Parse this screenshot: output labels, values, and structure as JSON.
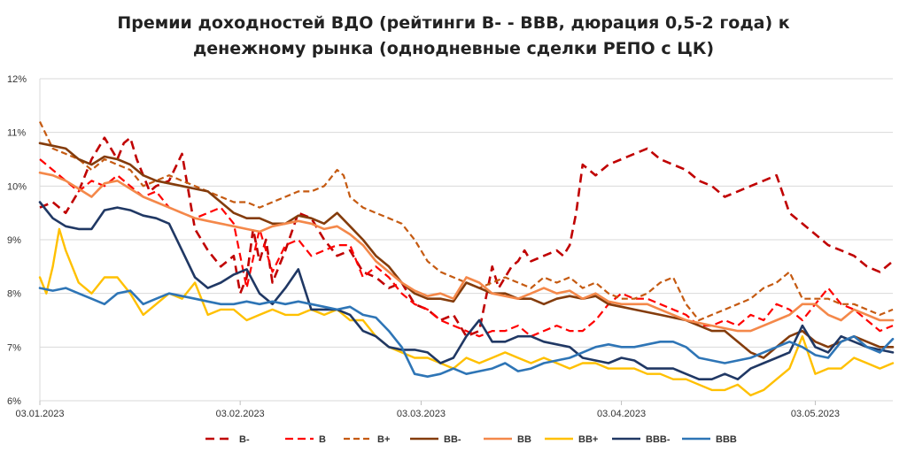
{
  "chart_data": {
    "type": "line",
    "title_line1": "Премии доходностей ВДО (рейтинги В- - ВВВ, дюрация 0,5-2 года) к",
    "title_line2": "денежному рынка (однодневные сделки РЕПО с ЦК)",
    "xlabel": "",
    "ylabel": "",
    "ylim": [
      6,
      12
    ],
    "xlim": [
      0,
      132
    ],
    "grid": true,
    "legend_position": "bottom",
    "y_ticks": [
      {
        "value": 6,
        "label": "6%"
      },
      {
        "value": 7,
        "label": "7%"
      },
      {
        "value": 8,
        "label": "8%"
      },
      {
        "value": 9,
        "label": "9%"
      },
      {
        "value": 10,
        "label": "10%"
      },
      {
        "value": 11,
        "label": "11%"
      },
      {
        "value": 12,
        "label": "12%"
      }
    ],
    "x_ticks": [
      {
        "day": 0,
        "label": "03.01.2023"
      },
      {
        "day": 31,
        "label": "03.02.2023"
      },
      {
        "day": 59,
        "label": "03.03.2023"
      },
      {
        "day": 90,
        "label": "03.04.2023"
      },
      {
        "day": 120,
        "label": "03.05.2023"
      }
    ],
    "series": [
      {
        "name": "В-",
        "color": "#c00000",
        "dash": "10,6",
        "width": 2.6,
        "x": [
          0,
          2,
          4,
          6,
          8,
          10,
          12,
          13,
          14,
          15,
          16,
          17,
          18,
          20,
          22,
          24,
          26,
          28,
          30,
          31,
          32,
          33,
          34,
          35,
          36,
          38,
          40,
          42,
          44,
          46,
          48,
          50,
          52,
          54,
          56,
          58,
          60,
          62,
          64,
          66,
          68,
          70,
          71,
          72,
          73,
          74,
          75,
          76,
          78,
          80,
          81,
          82,
          83,
          84,
          85,
          86,
          88,
          90,
          92,
          94,
          96,
          98,
          100,
          102,
          104,
          106,
          108,
          110,
          112,
          114,
          116,
          118,
          120,
          122,
          124,
          126,
          128,
          130,
          132
        ],
        "y": [
          9.6,
          9.7,
          9.5,
          9.9,
          10.5,
          10.9,
          10.5,
          10.8,
          10.9,
          10.5,
          10.2,
          9.9,
          10.0,
          10.1,
          10.6,
          9.2,
          8.8,
          8.5,
          8.7,
          8.0,
          8.3,
          9.2,
          8.6,
          9.0,
          8.2,
          8.8,
          9.5,
          9.4,
          9.0,
          8.7,
          8.8,
          8.4,
          8.3,
          8.1,
          8.2,
          7.8,
          7.7,
          7.5,
          7.6,
          7.2,
          7.3,
          8.5,
          8.1,
          8.3,
          8.5,
          8.6,
          8.8,
          8.6,
          8.7,
          8.8,
          8.7,
          8.9,
          9.5,
          10.4,
          10.3,
          10.2,
          10.4,
          10.5,
          10.6,
          10.7,
          10.5,
          10.4,
          10.3,
          10.1,
          10.0,
          9.8,
          9.9,
          10.0,
          10.1,
          10.2,
          9.5,
          9.3,
          9.1,
          8.9,
          8.8,
          8.7,
          8.5,
          8.4,
          8.6
        ]
      },
      {
        "name": "В",
        "color": "#ff0000",
        "dash": "9,5",
        "width": 2.2,
        "x": [
          0,
          2,
          4,
          6,
          8,
          10,
          12,
          14,
          16,
          18,
          20,
          22,
          24,
          26,
          28,
          30,
          32,
          34,
          36,
          38,
          40,
          42,
          44,
          46,
          48,
          50,
          52,
          54,
          56,
          58,
          60,
          62,
          64,
          66,
          68,
          70,
          72,
          74,
          76,
          78,
          80,
          82,
          84,
          86,
          88,
          90,
          92,
          94,
          96,
          98,
          100,
          102,
          104,
          106,
          108,
          110,
          112,
          114,
          116,
          118,
          120,
          122,
          124,
          126,
          128,
          130,
          132
        ],
        "y": [
          10.5,
          10.3,
          10.1,
          9.9,
          10.1,
          10.0,
          10.2,
          10.0,
          9.8,
          9.9,
          9.6,
          9.5,
          9.4,
          9.5,
          9.6,
          9.3,
          8.1,
          9.2,
          8.4,
          8.9,
          9.0,
          8.7,
          8.8,
          8.9,
          8.9,
          8.3,
          8.5,
          8.3,
          8.0,
          7.8,
          7.7,
          7.5,
          7.4,
          7.3,
          7.2,
          7.3,
          7.3,
          7.4,
          7.2,
          7.3,
          7.4,
          7.3,
          7.3,
          7.5,
          7.8,
          8.0,
          7.9,
          7.9,
          7.8,
          7.7,
          7.6,
          7.4,
          7.4,
          7.5,
          7.4,
          7.6,
          7.5,
          7.8,
          7.7,
          7.5,
          7.8,
          8.1,
          7.8,
          7.7,
          7.5,
          7.3,
          7.4
        ]
      },
      {
        "name": "В+",
        "color": "#c55a11",
        "dash": "7,4",
        "width": 2.2,
        "x": [
          0,
          2,
          4,
          6,
          8,
          10,
          12,
          14,
          16,
          18,
          20,
          22,
          24,
          26,
          28,
          30,
          32,
          34,
          36,
          38,
          40,
          42,
          44,
          46,
          47,
          48,
          50,
          52,
          54,
          56,
          58,
          60,
          62,
          64,
          66,
          68,
          70,
          72,
          74,
          76,
          78,
          80,
          82,
          84,
          86,
          88,
          90,
          92,
          94,
          96,
          98,
          100,
          102,
          104,
          106,
          108,
          110,
          112,
          114,
          116,
          118,
          120,
          122,
          124,
          126,
          128,
          130,
          132
        ],
        "y": [
          11.2,
          10.7,
          10.6,
          10.5,
          10.3,
          10.5,
          10.4,
          10.3,
          10.0,
          10.1,
          10.2,
          10.1,
          10.0,
          9.9,
          9.8,
          9.7,
          9.7,
          9.6,
          9.7,
          9.8,
          9.9,
          9.9,
          10.0,
          10.3,
          10.2,
          9.8,
          9.6,
          9.5,
          9.4,
          9.3,
          9.0,
          8.6,
          8.4,
          8.3,
          8.2,
          8.1,
          8.2,
          8.3,
          8.2,
          8.1,
          8.3,
          8.2,
          8.3,
          8.1,
          8.2,
          8.0,
          7.9,
          7.9,
          8.0,
          8.2,
          8.3,
          7.8,
          7.5,
          7.6,
          7.7,
          7.8,
          7.9,
          8.1,
          8.2,
          8.4,
          7.9,
          7.9,
          7.9,
          7.8,
          7.8,
          7.7,
          7.6,
          7.7
        ]
      },
      {
        "name": "ВВ-",
        "color": "#843c0c",
        "dash": "",
        "width": 2.6,
        "x": [
          0,
          2,
          4,
          6,
          8,
          10,
          12,
          14,
          16,
          18,
          20,
          22,
          24,
          26,
          28,
          30,
          32,
          34,
          36,
          38,
          40,
          42,
          44,
          46,
          48,
          50,
          52,
          54,
          56,
          58,
          60,
          62,
          64,
          66,
          68,
          70,
          72,
          74,
          76,
          78,
          80,
          82,
          84,
          86,
          88,
          90,
          92,
          94,
          96,
          98,
          100,
          102,
          104,
          106,
          108,
          110,
          112,
          114,
          116,
          118,
          120,
          122,
          124,
          126,
          128,
          130,
          132
        ],
        "y": [
          10.8,
          10.75,
          10.7,
          10.5,
          10.4,
          10.55,
          10.5,
          10.4,
          10.2,
          10.1,
          10.05,
          10.0,
          9.95,
          9.9,
          9.7,
          9.5,
          9.4,
          9.4,
          9.3,
          9.3,
          9.45,
          9.4,
          9.3,
          9.5,
          9.25,
          9.0,
          8.7,
          8.5,
          8.2,
          8.0,
          7.9,
          7.9,
          7.85,
          8.2,
          8.1,
          8.0,
          8.0,
          7.9,
          7.9,
          7.8,
          7.9,
          7.95,
          7.9,
          7.95,
          7.8,
          7.75,
          7.7,
          7.65,
          7.6,
          7.55,
          7.5,
          7.4,
          7.3,
          7.3,
          7.1,
          6.9,
          6.8,
          7.0,
          7.2,
          7.3,
          7.1,
          7.0,
          7.1,
          7.2,
          7.1,
          7.0,
          7.0
        ]
      },
      {
        "name": "ВВ",
        "color": "#f4884a",
        "dash": "",
        "width": 2.6,
        "x": [
          0,
          2,
          4,
          6,
          8,
          10,
          12,
          14,
          16,
          18,
          20,
          22,
          24,
          26,
          28,
          30,
          32,
          34,
          36,
          38,
          40,
          42,
          44,
          46,
          48,
          50,
          52,
          54,
          56,
          58,
          60,
          62,
          64,
          66,
          68,
          70,
          72,
          74,
          76,
          78,
          80,
          82,
          84,
          86,
          88,
          90,
          92,
          94,
          96,
          98,
          100,
          102,
          104,
          106,
          108,
          110,
          112,
          114,
          116,
          118,
          120,
          122,
          124,
          126,
          128,
          130,
          132
        ],
        "y": [
          10.25,
          10.2,
          10.1,
          9.95,
          9.8,
          10.05,
          10.1,
          9.95,
          9.8,
          9.7,
          9.6,
          9.5,
          9.4,
          9.35,
          9.3,
          9.25,
          9.2,
          9.15,
          9.25,
          9.3,
          9.35,
          9.3,
          9.2,
          9.25,
          9.1,
          8.9,
          8.6,
          8.4,
          8.2,
          8.05,
          7.95,
          8.0,
          7.9,
          8.3,
          8.2,
          8.0,
          7.95,
          7.9,
          8.0,
          8.1,
          8.0,
          8.05,
          7.9,
          8.0,
          7.85,
          7.8,
          7.8,
          7.8,
          7.7,
          7.6,
          7.5,
          7.45,
          7.4,
          7.35,
          7.3,
          7.3,
          7.4,
          7.5,
          7.6,
          7.8,
          7.8,
          7.6,
          7.5,
          7.7,
          7.6,
          7.5,
          7.5
        ]
      },
      {
        "name": "ВВ+",
        "color": "#ffc000",
        "dash": "",
        "width": 2.4,
        "x": [
          0,
          1,
          2,
          3,
          4,
          5,
          6,
          7,
          8,
          10,
          12,
          14,
          16,
          18,
          20,
          22,
          24,
          26,
          28,
          30,
          32,
          34,
          36,
          38,
          40,
          42,
          44,
          46,
          48,
          50,
          52,
          54,
          56,
          58,
          60,
          62,
          64,
          66,
          68,
          70,
          72,
          74,
          76,
          78,
          80,
          82,
          84,
          86,
          88,
          90,
          92,
          94,
          96,
          98,
          100,
          102,
          104,
          106,
          108,
          110,
          112,
          114,
          116,
          118,
          120,
          122,
          124,
          126,
          128,
          130,
          132
        ],
        "y": [
          8.3,
          8.0,
          8.5,
          9.2,
          8.8,
          8.5,
          8.2,
          8.1,
          8.0,
          8.3,
          8.3,
          8.0,
          7.6,
          7.8,
          8.0,
          7.9,
          8.2,
          7.6,
          7.7,
          7.7,
          7.5,
          7.6,
          7.7,
          7.6,
          7.6,
          7.7,
          7.6,
          7.7,
          7.5,
          7.5,
          7.2,
          7.0,
          6.9,
          6.8,
          6.8,
          6.7,
          6.6,
          6.8,
          6.7,
          6.8,
          6.9,
          6.8,
          6.7,
          6.8,
          6.7,
          6.6,
          6.7,
          6.7,
          6.6,
          6.6,
          6.6,
          6.5,
          6.5,
          6.4,
          6.4,
          6.3,
          6.2,
          6.2,
          6.3,
          6.1,
          6.2,
          6.4,
          6.6,
          7.2,
          6.5,
          6.6,
          6.6,
          6.8,
          6.7,
          6.6,
          6.7
        ]
      },
      {
        "name": "ВВВ-",
        "color": "#203864",
        "dash": "",
        "width": 2.6,
        "x": [
          0,
          2,
          4,
          6,
          8,
          10,
          12,
          14,
          16,
          18,
          20,
          22,
          24,
          26,
          28,
          30,
          32,
          34,
          36,
          38,
          40,
          42,
          44,
          46,
          48,
          50,
          52,
          54,
          56,
          58,
          60,
          62,
          64,
          66,
          68,
          70,
          72,
          74,
          76,
          78,
          80,
          82,
          84,
          86,
          88,
          90,
          92,
          94,
          96,
          98,
          100,
          102,
          104,
          106,
          108,
          110,
          112,
          114,
          116,
          118,
          120,
          122,
          124,
          126,
          128,
          130,
          132
        ],
        "y": [
          9.7,
          9.4,
          9.25,
          9.2,
          9.2,
          9.55,
          9.6,
          9.55,
          9.45,
          9.4,
          9.3,
          8.8,
          8.3,
          8.1,
          8.2,
          8.35,
          8.45,
          8.0,
          7.8,
          8.1,
          8.45,
          7.7,
          7.7,
          7.7,
          7.6,
          7.3,
          7.2,
          7.0,
          6.95,
          6.95,
          6.9,
          6.7,
          6.8,
          7.2,
          7.5,
          7.1,
          7.1,
          7.2,
          7.2,
          7.1,
          7.05,
          7.0,
          6.8,
          6.75,
          6.7,
          6.8,
          6.75,
          6.6,
          6.6,
          6.6,
          6.5,
          6.4,
          6.4,
          6.5,
          6.4,
          6.6,
          6.7,
          6.8,
          6.9,
          7.4,
          7.0,
          6.9,
          7.2,
          7.1,
          7.0,
          6.95,
          6.9
        ]
      },
      {
        "name": "ВВВ",
        "color": "#2e75b6",
        "dash": "",
        "width": 2.6,
        "x": [
          0,
          2,
          4,
          6,
          8,
          10,
          12,
          14,
          16,
          18,
          20,
          22,
          24,
          26,
          28,
          30,
          32,
          34,
          36,
          38,
          40,
          42,
          44,
          46,
          48,
          50,
          52,
          54,
          56,
          58,
          60,
          62,
          64,
          66,
          68,
          70,
          72,
          74,
          76,
          78,
          80,
          82,
          84,
          86,
          88,
          90,
          92,
          94,
          96,
          98,
          100,
          102,
          104,
          106,
          108,
          110,
          112,
          114,
          116,
          118,
          120,
          122,
          124,
          126,
          128,
          130,
          132
        ],
        "y": [
          8.1,
          8.05,
          8.1,
          8.0,
          7.9,
          7.8,
          8.0,
          8.05,
          7.8,
          7.9,
          8.0,
          7.95,
          7.9,
          7.85,
          7.8,
          7.8,
          7.85,
          7.8,
          7.85,
          7.8,
          7.85,
          7.8,
          7.75,
          7.7,
          7.75,
          7.6,
          7.55,
          7.3,
          7.0,
          6.5,
          6.45,
          6.5,
          6.6,
          6.5,
          6.55,
          6.6,
          6.7,
          6.55,
          6.6,
          6.7,
          6.75,
          6.8,
          6.9,
          7.0,
          7.05,
          7.0,
          7.0,
          7.05,
          7.1,
          7.1,
          7.0,
          6.8,
          6.75,
          6.7,
          6.75,
          6.8,
          6.9,
          7.0,
          7.1,
          7.0,
          6.85,
          6.8,
          7.1,
          7.2,
          7.0,
          6.9,
          7.15
        ]
      }
    ]
  }
}
